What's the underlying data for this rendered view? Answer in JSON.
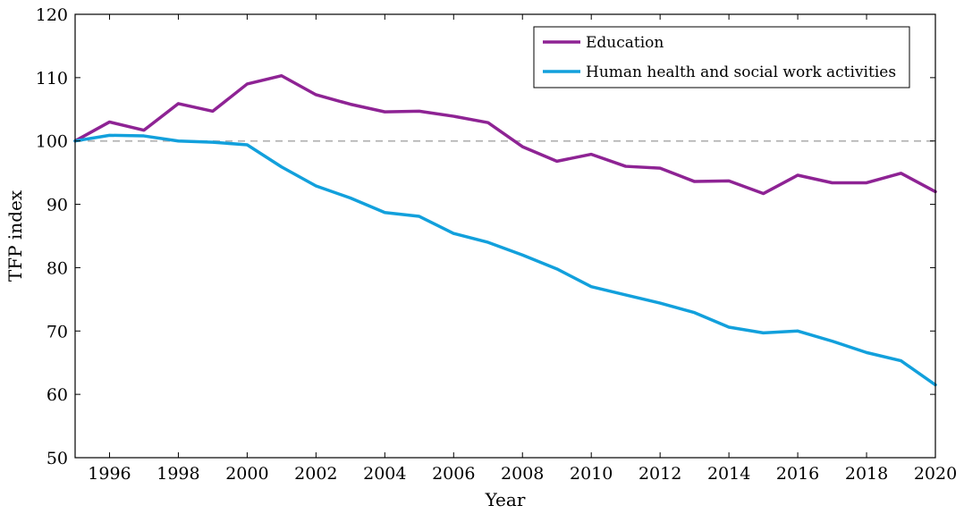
{
  "chart_data": {
    "type": "line",
    "title": "",
    "xlabel": "Year",
    "ylabel": "TFP index",
    "xlim": [
      1995,
      2020
    ],
    "ylim": [
      50,
      120
    ],
    "x_ticks": [
      1996,
      1998,
      2000,
      2002,
      2004,
      2006,
      2008,
      2010,
      2012,
      2014,
      2016,
      2018,
      2020
    ],
    "y_ticks": [
      50,
      60,
      70,
      80,
      90,
      100,
      110,
      120
    ],
    "x_tick_labels": [
      "1996",
      "1998",
      "2000",
      "2002",
      "2004",
      "2006",
      "2008",
      "2010",
      "2012",
      "2014",
      "2016",
      "2018",
      "2020"
    ],
    "y_tick_labels": [
      "50",
      "60",
      "70",
      "80",
      "90",
      "100",
      "110",
      "120"
    ],
    "grid": false,
    "legend_position": "top-right",
    "reference_line": {
      "y": 100,
      "style": "dashed",
      "color": "#b3b3b3"
    },
    "x": [
      1995,
      1996,
      1997,
      1998,
      1999,
      2000,
      2001,
      2002,
      2003,
      2004,
      2005,
      2006,
      2007,
      2008,
      2009,
      2010,
      2011,
      2012,
      2013,
      2014,
      2015,
      2016,
      2017,
      2018,
      2019,
      2020
    ],
    "series": [
      {
        "name": "Education",
        "color": "#8e2394",
        "values": [
          100,
          103.0,
          101.7,
          105.9,
          104.7,
          109.0,
          110.3,
          107.3,
          105.8,
          104.6,
          104.7,
          103.9,
          102.9,
          99.1,
          96.8,
          97.9,
          96.0,
          95.7,
          93.6,
          93.7,
          91.7,
          94.6,
          93.4,
          93.4,
          94.9,
          92.0
        ]
      },
      {
        "name": "Human health and social work activities",
        "color": "#12a0dc",
        "values": [
          100,
          100.9,
          100.8,
          100.0,
          99.8,
          99.4,
          95.9,
          92.9,
          91.0,
          88.7,
          88.1,
          85.4,
          84.0,
          82.0,
          79.8,
          77.0,
          75.7,
          74.4,
          72.9,
          70.6,
          69.7,
          70.0,
          68.4,
          66.6,
          65.3,
          61.5
        ]
      }
    ]
  }
}
